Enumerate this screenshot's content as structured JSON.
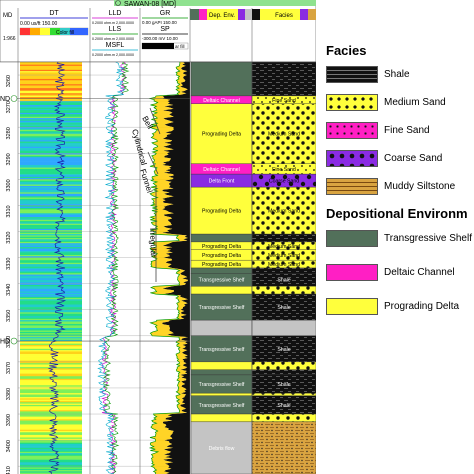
{
  "well": {
    "title": "SAWAN-08 [MD]"
  },
  "header": {
    "md_label": "MD",
    "tracks": [
      {
        "name": "DT",
        "scale": "0.00 us/ft 150.00",
        "fill_label": "Color fill"
      },
      {
        "name": "LLD",
        "scale": "0.2000 ohm.m 2,000.0000"
      },
      {
        "name": "LLS",
        "scale": "0.2000 ohm.m 2,000.0000"
      },
      {
        "name": "MSFL",
        "scale": "0.2000 ohm.m 2,000.0000"
      },
      {
        "name": "GR",
        "scale": "0.00 gAPI 150.00"
      },
      {
        "name": "SP",
        "scale": "-300.00 mV 10.00",
        "fill_label": "ar fill"
      }
    ],
    "depo_env_label": "Dep. Env.",
    "facies_label": "Facies",
    "scale_value": "1:966"
  },
  "depth_ticks": [
    "3260",
    "3270",
    "3280",
    "3290",
    "3300",
    "3310",
    "3320",
    "3330",
    "3340",
    "3350",
    "3360",
    "3370",
    "3380",
    "3390",
    "3400",
    "3410"
  ],
  "markers": [
    {
      "label": "ND",
      "depth": 3269
    },
    {
      "label": "HD",
      "depth": 3362
    }
  ],
  "depth_range": [
    3255,
    3413
  ],
  "trend_labels": [
    "Bell",
    "Cylindrical",
    "Funnel",
    "Irregular"
  ],
  "intervals": [
    {
      "top": 3255,
      "bottom": 3268,
      "env": "",
      "env_color": "#52705a",
      "facies": "",
      "facies_pattern": "shale"
    },
    {
      "top": 3268,
      "bottom": 3271,
      "env": "Deltaic Channel",
      "env_color": "#ff1fc4",
      "facies": "Fine Sand",
      "facies_pattern": "fine"
    },
    {
      "top": 3271,
      "bottom": 3294,
      "env": "Prograding Delta",
      "env_color": "#ffff3c",
      "facies": "Medium Sand",
      "facies_pattern": "medium"
    },
    {
      "top": 3294,
      "bottom": 3298,
      "env": "Deltaic Channel",
      "env_color": "#ff1fc4",
      "facies": "Fine Sand",
      "facies_pattern": "fine"
    },
    {
      "top": 3298,
      "bottom": 3303,
      "env": "Delta Front",
      "env_color": "#8a2be2",
      "facies": "Coarse Sand",
      "facies_pattern": "coarse"
    },
    {
      "top": 3303,
      "bottom": 3321,
      "env": "Prograding Delta",
      "env_color": "#ffff3c",
      "facies": "Medium Sand",
      "facies_pattern": "medium"
    },
    {
      "top": 3321,
      "bottom": 3324,
      "env": "",
      "env_color": "#52705a",
      "facies": "",
      "facies_pattern": "shale"
    },
    {
      "top": 3324,
      "bottom": 3327,
      "env": "Prograding Delta",
      "env_color": "#ffff3c",
      "facies": "Medium Sand",
      "facies_pattern": "medium"
    },
    {
      "top": 3327,
      "bottom": 3331,
      "env": "Prograding Delta",
      "env_color": "#ffff3c",
      "facies": "Medium Sand",
      "facies_pattern": "medium"
    },
    {
      "top": 3331,
      "bottom": 3334,
      "env": "Prograding Delta",
      "env_color": "#ffff3c",
      "facies": "Medium Sand",
      "facies_pattern": "medium"
    },
    {
      "top": 3334,
      "bottom": 3336,
      "env": "",
      "env_color": "#52705a",
      "facies": "",
      "facies_pattern": "shale"
    },
    {
      "top": 3336,
      "bottom": 3341,
      "env": "Transgressive Shelf",
      "env_color": "#52705a",
      "facies": "Shale",
      "facies_pattern": "shale"
    },
    {
      "top": 3341,
      "bottom": 3344,
      "env": "",
      "env_color": "#ffff3c",
      "facies": "",
      "facies_pattern": "medium"
    },
    {
      "top": 3344,
      "bottom": 3354,
      "env": "Transgressive Shelf",
      "env_color": "#52705a",
      "facies": "Shale",
      "facies_pattern": "shale"
    },
    {
      "top": 3354,
      "bottom": 3360,
      "env": "",
      "env_color": "#c4c4c4",
      "facies": "",
      "facies_pattern": "grey"
    },
    {
      "top": 3360,
      "bottom": 3370,
      "env": "Transgressive Shelf",
      "env_color": "#52705a",
      "facies": "Shale",
      "facies_pattern": "shale"
    },
    {
      "top": 3370,
      "bottom": 3373,
      "env": "",
      "env_color": "#ffff3c",
      "facies": "",
      "facies_pattern": "medium"
    },
    {
      "top": 3373,
      "bottom": 3375,
      "env": "",
      "env_color": "#52705a",
      "facies": "",
      "facies_pattern": "shale"
    },
    {
      "top": 3375,
      "bottom": 3382,
      "env": "Transgressive Shelf",
      "env_color": "#52705a",
      "facies": "Shale",
      "facies_pattern": "shale"
    },
    {
      "top": 3382,
      "bottom": 3383,
      "env": "",
      "env_color": "#ffff3c",
      "facies": "",
      "facies_pattern": "medium"
    },
    {
      "top": 3383,
      "bottom": 3390,
      "env": "Transgressive Shelf",
      "env_color": "#52705a",
      "facies": "Shale",
      "facies_pattern": "shale"
    },
    {
      "top": 3390,
      "bottom": 3393,
      "env": "",
      "env_color": "#ffff3c",
      "facies": "",
      "facies_pattern": "medium"
    },
    {
      "top": 3393,
      "bottom": 3413,
      "env": "Debris flow",
      "env_color": "#c4c4c4",
      "facies": "",
      "facies_pattern": "muddy"
    }
  ],
  "legend": {
    "facies_title": "Facies",
    "facies": [
      {
        "label": "Shale",
        "pattern": "shale"
      },
      {
        "label": "Medium Sand",
        "pattern": "medium"
      },
      {
        "label": "Fine Sand",
        "pattern": "fine"
      },
      {
        "label": "Coarse Sand",
        "pattern": "coarse"
      },
      {
        "label": "Muddy Siltstone",
        "pattern": "muddy"
      }
    ],
    "env_title": "Depositional Environm",
    "envs": [
      {
        "label": "Transgressive Shelf",
        "color": "#52705a"
      },
      {
        "label": "Deltaic Channel",
        "color": "#ff1fc4"
      },
      {
        "label": "Prograding Delta",
        "color": "#ffff3c"
      }
    ]
  },
  "colors": {
    "shale": "#111111",
    "medium_sand": "#ffff3c",
    "fine_sand": "#ffff3c",
    "coarse_sand": "#8a2be2",
    "muddy_siltstone": "#d9a441",
    "transgressive_shelf": "#52705a",
    "deltaic_channel": "#ff1fc4",
    "prograding_delta": "#ffff3c",
    "header_green": "#8fe28f",
    "gr_fill": "#ffcc00"
  }
}
